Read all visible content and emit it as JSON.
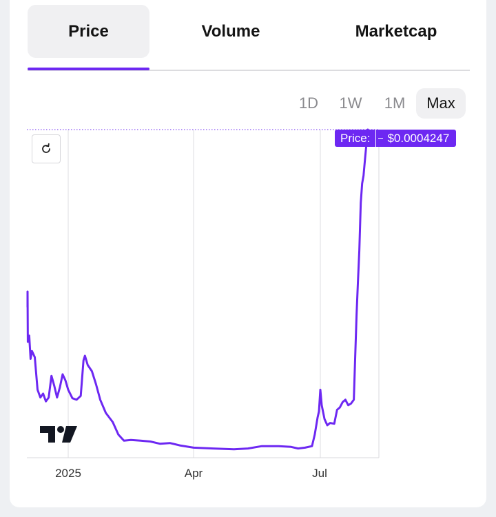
{
  "tabs": [
    {
      "label": "Price",
      "active": true
    },
    {
      "label": "Volume",
      "active": false
    },
    {
      "label": "Marketcap",
      "active": false
    }
  ],
  "ranges": [
    {
      "label": "1D",
      "active": false
    },
    {
      "label": "1W",
      "active": false
    },
    {
      "label": "1M",
      "active": false
    },
    {
      "label": "Max",
      "active": true
    }
  ],
  "price_tag": {
    "label": "Price:",
    "value": "$0.0004247"
  },
  "accent_color": "#6d28f2",
  "icons": {
    "reset": "reset-icon",
    "logo": "tradingview-logo-icon"
  },
  "chart_data": {
    "type": "line",
    "title": "",
    "xlabel": "",
    "ylabel": "",
    "x_ticks": [
      "2025",
      "Apr",
      "Jul"
    ],
    "y_axis_shown": false,
    "grid": "vertical lines at x ticks",
    "current_price": "$0.0004247",
    "series": [
      {
        "color": "#6d28f2",
        "points": [
          [
            "2024-12-01",
            0.000195
          ],
          [
            "2024-12-02",
            0.000215
          ],
          [
            "2024-12-03",
            0.00015
          ],
          [
            "2024-12-04",
            0.000158
          ],
          [
            "2024-12-05",
            0.000128
          ],
          [
            "2024-12-06",
            0.000138
          ],
          [
            "2024-12-08",
            0.00013
          ],
          [
            "2024-12-10",
            8.8e-05
          ],
          [
            "2024-12-12",
            7.8e-05
          ],
          [
            "2024-12-14",
            8.3e-05
          ],
          [
            "2024-12-16",
            7.3e-05
          ],
          [
            "2024-12-18",
            7.8e-05
          ],
          [
            "2024-12-20",
            0.000106
          ],
          [
            "2024-12-22",
            9.3e-05
          ],
          [
            "2024-12-24",
            7.8e-05
          ],
          [
            "2024-12-26",
            9.1e-05
          ],
          [
            "2024-12-28",
            0.000108
          ],
          [
            "2024-12-30",
            0.0001
          ],
          [
            "2025-01-01",
            8.8e-05
          ],
          [
            "2025-01-04",
            7.7e-05
          ],
          [
            "2025-01-07",
            7.5e-05
          ],
          [
            "2025-01-10",
            8e-05
          ],
          [
            "2025-01-12",
            0.000126
          ],
          [
            "2025-01-13",
            0.000132
          ],
          [
            "2025-01-15",
            0.00012
          ],
          [
            "2025-01-18",
            0.000112
          ],
          [
            "2025-01-21",
            9.5e-05
          ],
          [
            "2025-01-24",
            7.5e-05
          ],
          [
            "2025-01-28",
            5.8e-05
          ],
          [
            "2025-02-02",
            4.6e-05
          ],
          [
            "2025-02-06",
            3e-05
          ],
          [
            "2025-02-10",
            2.2e-05
          ],
          [
            "2025-02-15",
            2.3e-05
          ],
          [
            "2025-02-22",
            2.2e-05
          ],
          [
            "2025-03-01",
            2.1e-05
          ],
          [
            "2025-03-08",
            1.8e-05
          ],
          [
            "2025-03-15",
            1.9e-05
          ],
          [
            "2025-03-22",
            1.6e-05
          ],
          [
            "2025-04-01",
            1.3e-05
          ],
          [
            "2025-04-15",
            1.2e-05
          ],
          [
            "2025-04-30",
            1.1e-05
          ],
          [
            "2025-05-10",
            1.2e-05
          ],
          [
            "2025-05-20",
            1.5e-05
          ],
          [
            "2025-06-01",
            1.5e-05
          ],
          [
            "2025-06-10",
            1.4e-05
          ],
          [
            "2025-06-15",
            1.2e-05
          ],
          [
            "2025-06-20",
            1.3e-05
          ],
          [
            "2025-06-25",
            1.5e-05
          ],
          [
            "2025-06-27",
            3e-05
          ],
          [
            "2025-06-29",
            5.2e-05
          ],
          [
            "2025-06-30",
            6e-05
          ],
          [
            "2025-07-01",
            8.8e-05
          ],
          [
            "2025-07-02",
            6.8e-05
          ],
          [
            "2025-07-04",
            5e-05
          ],
          [
            "2025-07-06",
            4.2e-05
          ],
          [
            "2025-07-08",
            4.5e-05
          ],
          [
            "2025-07-11",
            4.4e-05
          ],
          [
            "2025-07-13",
            6.2e-05
          ],
          [
            "2025-07-15",
            6.5e-05
          ],
          [
            "2025-07-17",
            7.2e-05
          ],
          [
            "2025-07-19",
            7.5e-05
          ],
          [
            "2025-07-21",
            6.8e-05
          ],
          [
            "2025-07-23",
            7e-05
          ],
          [
            "2025-07-25",
            7.5e-05
          ],
          [
            "2025-07-26",
            0.00013
          ],
          [
            "2025-07-27",
            0.000185
          ],
          [
            "2025-07-28",
            0.000228
          ],
          [
            "2025-07-29",
            0.000268
          ],
          [
            "2025-07-30",
            0.00033
          ],
          [
            "2025-07-31",
            0.000355
          ],
          [
            "2025-08-01",
            0.000365
          ],
          [
            "2025-08-02",
            0.000385
          ],
          [
            "2025-08-03",
            0.000405
          ],
          [
            "2025-08-04",
            0.0004247
          ]
        ]
      }
    ]
  }
}
